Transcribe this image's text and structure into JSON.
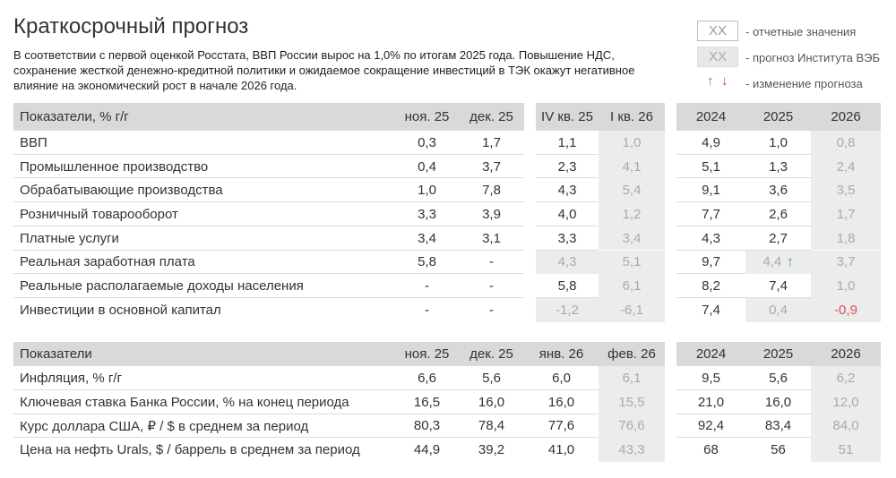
{
  "header": {
    "title": "Краткосрочный прогноз",
    "description": "В соответствии с первой оценкой Росстата, ВВП России вырос на 1,0% по итогам 2025 года. Повышение НДС, сохранение жесткой денежно-кредитной политики и ожидаемое сокращение инвестиций в ТЭК окажут негативное влияние на экономический рост в начале 2026 года."
  },
  "legend": [
    {
      "sample": "XX",
      "label": "- отчетные значения"
    },
    {
      "sample": "XX",
      "label": "- прогноз Института ВЭБ"
    },
    {
      "up": "↑",
      "down": "↓",
      "label": "- изменение прогноза"
    }
  ],
  "tables": [
    {
      "header": "Показатели, % г/г",
      "columns": [
        "ноя. 25",
        "дек. 25",
        "IV кв. 25",
        "I кв. 26",
        "2024",
        "2025",
        "2026"
      ],
      "rows": [
        {
          "label": "ВВП",
          "cells": [
            {
              "text": "0,3"
            },
            {
              "text": "1,7"
            },
            {
              "text": "1,1"
            },
            {
              "text": "1,0",
              "forecast": true
            },
            {
              "text": "4,9"
            },
            {
              "text": "1,0"
            },
            {
              "text": "0,8",
              "forecast": true
            }
          ]
        },
        {
          "label": "Промышленное производство",
          "cells": [
            {
              "text": "0,4"
            },
            {
              "text": "3,7"
            },
            {
              "text": "2,3"
            },
            {
              "text": "4,1",
              "forecast": true
            },
            {
              "text": "5,1"
            },
            {
              "text": "1,3"
            },
            {
              "text": "2,4",
              "forecast": true
            }
          ]
        },
        {
          "label": "Обрабатывающие производства",
          "cells": [
            {
              "text": "1,0"
            },
            {
              "text": "7,8"
            },
            {
              "text": "4,3"
            },
            {
              "text": "5,4",
              "forecast": true
            },
            {
              "text": "9,1"
            },
            {
              "text": "3,6"
            },
            {
              "text": "3,5",
              "forecast": true
            }
          ]
        },
        {
          "label": "Розничный товарооборот",
          "cells": [
            {
              "text": "3,3"
            },
            {
              "text": "3,9"
            },
            {
              "text": "4,0"
            },
            {
              "text": "1,2",
              "forecast": true
            },
            {
              "text": "7,7"
            },
            {
              "text": "2,6"
            },
            {
              "text": "1,7",
              "forecast": true
            }
          ]
        },
        {
          "label": "Платные услуги",
          "cells": [
            {
              "text": "3,4"
            },
            {
              "text": "3,1"
            },
            {
              "text": "3,3"
            },
            {
              "text": "3,4",
              "forecast": true
            },
            {
              "text": "4,3"
            },
            {
              "text": "2,7"
            },
            {
              "text": "1,8",
              "forecast": true
            }
          ]
        },
        {
          "label": "Реальная заработная плата",
          "cells": [
            {
              "text": "5,8"
            },
            {
              "text": "-"
            },
            {
              "text": "4,3",
              "forecast": true
            },
            {
              "text": "5,1",
              "forecast": true
            },
            {
              "text": "9,7"
            },
            {
              "text": "4,4",
              "forecast": true,
              "arrow": "↑"
            },
            {
              "text": "3,7",
              "forecast": true
            }
          ]
        },
        {
          "label": "Реальные располагаемые доходы населения",
          "cells": [
            {
              "text": "-"
            },
            {
              "text": "-"
            },
            {
              "text": "5,8"
            },
            {
              "text": "6,1",
              "forecast": true
            },
            {
              "text": "8,2"
            },
            {
              "text": "7,4"
            },
            {
              "text": "1,0",
              "forecast": true
            }
          ]
        },
        {
          "label": "Инвестиции в основной капитал",
          "cells": [
            {
              "text": "-"
            },
            {
              "text": "-"
            },
            {
              "text": "-1,2",
              "forecast": true
            },
            {
              "text": "-6,1",
              "forecast": true
            },
            {
              "text": "7,4"
            },
            {
              "text": "0,4",
              "forecast": true
            },
            {
              "text": "-0,9",
              "forecast": true,
              "color": "#e0525a"
            }
          ]
        }
      ]
    },
    {
      "header": "Показатели",
      "columns": [
        "ноя. 25",
        "дек. 25",
        "янв. 26",
        "фев. 26",
        "2024",
        "2025",
        "2026"
      ],
      "rows": [
        {
          "label": "Инфляция, % г/г",
          "cells": [
            {
              "text": "6,6"
            },
            {
              "text": "5,6"
            },
            {
              "text": "6,0"
            },
            {
              "text": "6,1",
              "forecast": true
            },
            {
              "text": "9,5"
            },
            {
              "text": "5,6"
            },
            {
              "text": "6,2",
              "forecast": true
            }
          ]
        },
        {
          "label": "Ключевая ставка Банка России, % на конец периода",
          "cells": [
            {
              "text": "16,5"
            },
            {
              "text": "16,0"
            },
            {
              "text": "16,0"
            },
            {
              "text": "15,5",
              "forecast": true
            },
            {
              "text": "21,0"
            },
            {
              "text": "16,0"
            },
            {
              "text": "12,0",
              "forecast": true
            }
          ]
        },
        {
          "label": "Курс доллара США, ₽ / $ в среднем за период",
          "cells": [
            {
              "text": "80,3"
            },
            {
              "text": "78,4"
            },
            {
              "text": "77,6"
            },
            {
              "text": "76,6",
              "forecast": true
            },
            {
              "text": "92,4"
            },
            {
              "text": "83,4"
            },
            {
              "text": "84,0",
              "forecast": true
            }
          ]
        },
        {
          "label": "Цена на нефть Urals, $ / баррель в среднем за период",
          "cells": [
            {
              "text": "44,9"
            },
            {
              "text": "39,2"
            },
            {
              "text": "41,0"
            },
            {
              "text": "43,3",
              "forecast": true
            },
            {
              "text": "68"
            },
            {
              "text": "56"
            },
            {
              "text": "51",
              "forecast": true
            }
          ]
        }
      ]
    }
  ]
}
